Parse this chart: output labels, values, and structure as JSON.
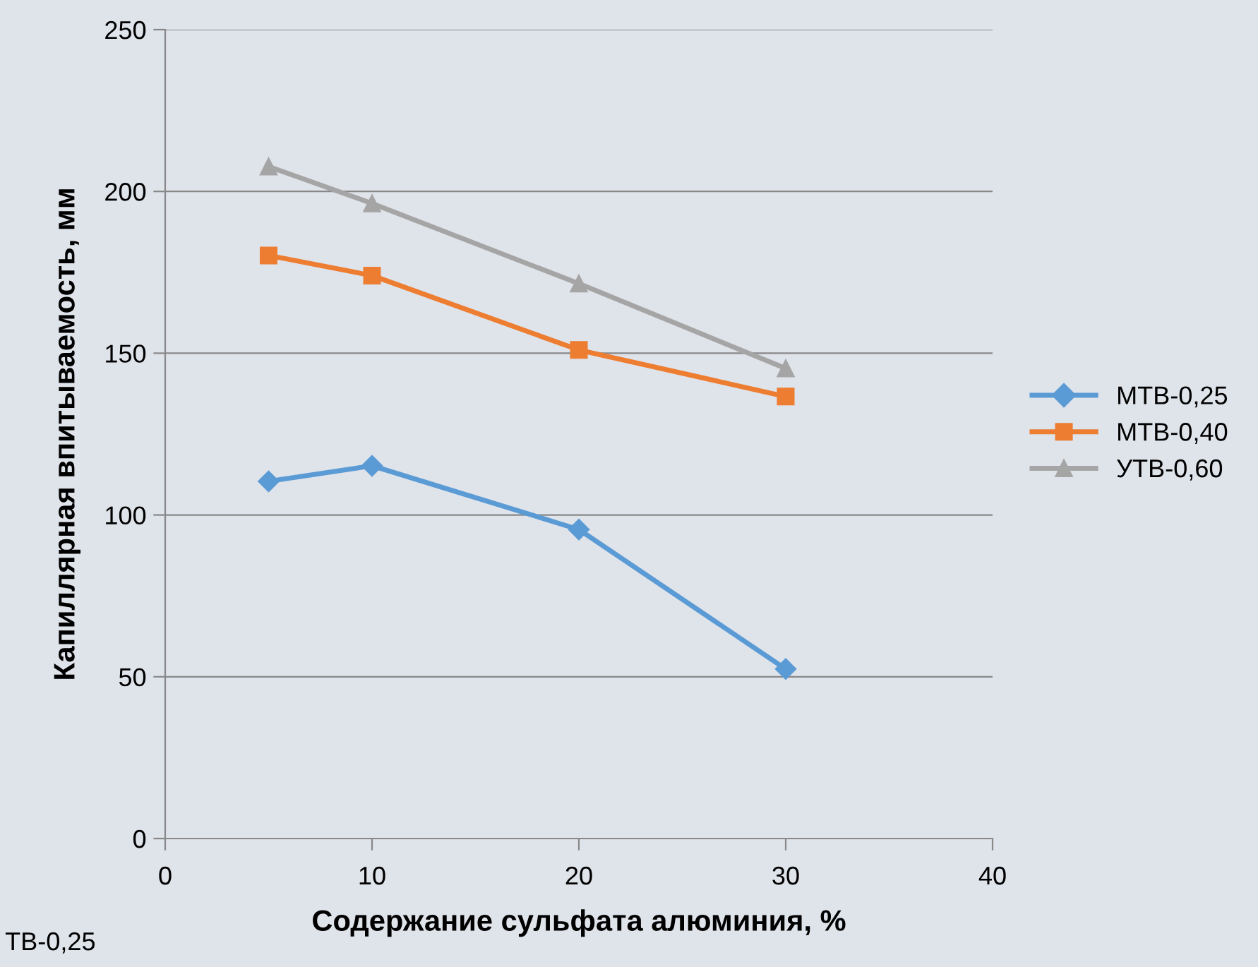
{
  "chart_data": {
    "type": "line",
    "xlabel": "Содержание сульфата алюминия, %",
    "ylabel": "Капиллярная впитываемость, мм",
    "x": [
      5,
      10,
      20,
      30
    ],
    "series": [
      {
        "name": "МТВ-0,25",
        "color": "#5b9bd5",
        "marker": "diamond",
        "values": [
          110.4,
          115.2,
          95.5,
          52.4
        ]
      },
      {
        "name": "МТВ-0,40",
        "color": "#ed7d31",
        "marker": "square",
        "values": [
          180.2,
          174,
          151,
          136.6
        ]
      },
      {
        "name": "УТВ-0,60",
        "color": "#a5a5a5",
        "marker": "triangle",
        "values": [
          207.7,
          196.3,
          171.5,
          145.3
        ]
      }
    ],
    "xlim": [
      0,
      40
    ],
    "xticks": [
      0,
      10,
      20,
      30,
      40
    ],
    "ylim": [
      0,
      250
    ],
    "yticks": [
      0,
      50,
      100,
      150,
      200,
      250
    ],
    "grid": "y",
    "legend": "right",
    "line_style": "solid",
    "annotations": [
      "ТВ-0,25"
    ]
  }
}
